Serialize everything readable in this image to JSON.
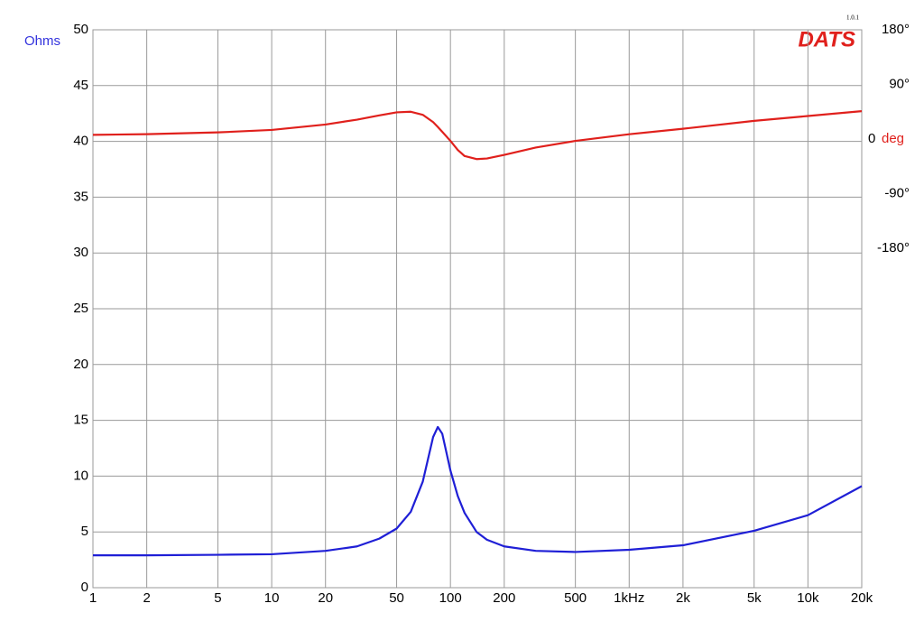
{
  "chart_data": {
    "type": "line",
    "logo": "DATS",
    "version": "1.0.1",
    "ylabel": "Ohms",
    "y2label": "deg",
    "log_x": true,
    "grid": true,
    "xlim": [
      1,
      20000
    ],
    "xticks": [
      1,
      2,
      5,
      10,
      20,
      50,
      100,
      200,
      500,
      {
        "value": 1000,
        "label": "1kHz"
      },
      {
        "value": 2000,
        "label": "2k"
      },
      {
        "value": 5000,
        "label": "5k"
      },
      {
        "value": 10000,
        "label": "10k"
      },
      {
        "value": 20000,
        "label": "20k"
      }
    ],
    "ylim": [
      0,
      50
    ],
    "yticks": [
      0,
      5,
      10,
      15,
      20,
      25,
      30,
      35,
      40,
      45,
      50
    ],
    "y2lim": [
      -739,
      180
    ],
    "y2ticks": [
      {
        "value": 180,
        "label": "180°"
      },
      {
        "value": 90,
        "label": "90°"
      },
      0,
      {
        "value": -90,
        "label": "-90°"
      },
      {
        "value": -180,
        "label": "-180°"
      }
    ],
    "x": [
      1,
      2,
      5,
      10,
      20,
      30,
      40,
      50,
      60,
      70,
      80,
      85,
      90,
      100,
      110,
      120,
      140,
      160,
      200,
      300,
      500,
      1000,
      2000,
      5000,
      10000,
      20000
    ],
    "series": [
      {
        "color": "#1f1fd6",
        "values": [
          2.9,
          2.9,
          2.95,
          3.0,
          3.3,
          3.7,
          4.4,
          5.3,
          6.8,
          9.5,
          13.5,
          14.4,
          13.8,
          10.5,
          8.2,
          6.7,
          5.0,
          4.3,
          3.7,
          3.3,
          3.2,
          3.4,
          3.8,
          5.1,
          6.5,
          9.1
        ]
      },
      {
        "color": "#e0201c",
        "axis": "y2",
        "values": [
          7,
          8,
          11,
          15,
          24,
          32,
          39,
          44,
          45,
          40,
          28,
          20,
          12,
          -3,
          -18,
          -28,
          -33,
          -32,
          -26,
          -14,
          -3,
          8,
          17,
          30,
          38,
          46
        ]
      }
    ]
  }
}
